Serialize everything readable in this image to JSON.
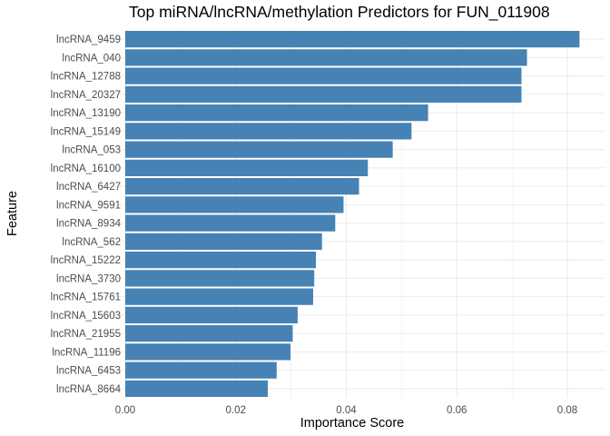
{
  "chart_data": {
    "type": "bar",
    "orientation": "horizontal",
    "title": "Top miRNA/lncRNA/methylation Predictors for FUN_011908",
    "xlabel": "Importance Score",
    "ylabel": "Feature",
    "xlim": [
      0,
      0.0843
    ],
    "x_ticks": [
      "0.00",
      "0.02",
      "0.04",
      "0.06",
      "0.08"
    ],
    "bar_color": "#4682B4",
    "grid": true,
    "categories": [
      "lncRNA_9459",
      "lncRNA_040",
      "lncRNA_12788",
      "lncRNA_20327",
      "lncRNA_13190",
      "lncRNA_15149",
      "lncRNA_053",
      "lncRNA_16100",
      "lncRNA_6427",
      "lncRNA_9591",
      "lncRNA_8934",
      "lncRNA_562",
      "lncRNA_15222",
      "lncRNA_3730",
      "lncRNA_15761",
      "lncRNA_15603",
      "lncRNA_21955",
      "lncRNA_11196",
      "lncRNA_6453",
      "lncRNA_8664"
    ],
    "values": [
      0.0822,
      0.0727,
      0.0717,
      0.0717,
      0.0548,
      0.0518,
      0.0484,
      0.0439,
      0.0423,
      0.0395,
      0.038,
      0.0356,
      0.0345,
      0.0342,
      0.034,
      0.0312,
      0.0303,
      0.0299,
      0.0274,
      0.0258
    ]
  }
}
